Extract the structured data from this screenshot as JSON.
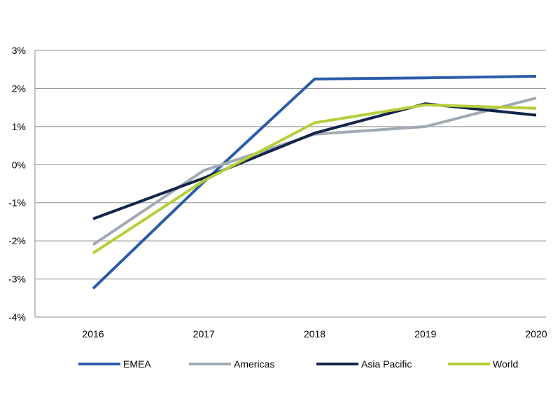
{
  "chart_data": {
    "type": "line",
    "title": "",
    "xlabel": "",
    "ylabel": "",
    "categories": [
      "2016",
      "2017",
      "2018",
      "2019",
      "2020"
    ],
    "ylim": [
      -4,
      3
    ],
    "y_ticks": [
      3,
      2,
      1,
      0,
      -1,
      -2,
      -3,
      -4
    ],
    "y_tick_labels": [
      "3%",
      "2%",
      "1%",
      "0%",
      "-1%",
      "-2%",
      "-3%",
      "-4%"
    ],
    "grid": "horizontal",
    "legend_position": "bottom",
    "series": [
      {
        "name": "EMEA",
        "color": "#2a5caa",
        "values": [
          -3.25,
          -0.45,
          2.25,
          2.28,
          2.32
        ]
      },
      {
        "name": "Americas",
        "color": "#a0a9b4",
        "values": [
          -2.1,
          -0.15,
          0.8,
          1.0,
          1.75
        ]
      },
      {
        "name": "Asia Pacific",
        "color": "#13244a",
        "values": [
          -1.42,
          -0.35,
          0.83,
          1.6,
          1.3
        ]
      },
      {
        "name": "World",
        "color": "#b5cf3a",
        "values": [
          -2.32,
          -0.42,
          1.1,
          1.57,
          1.48
        ]
      }
    ]
  }
}
